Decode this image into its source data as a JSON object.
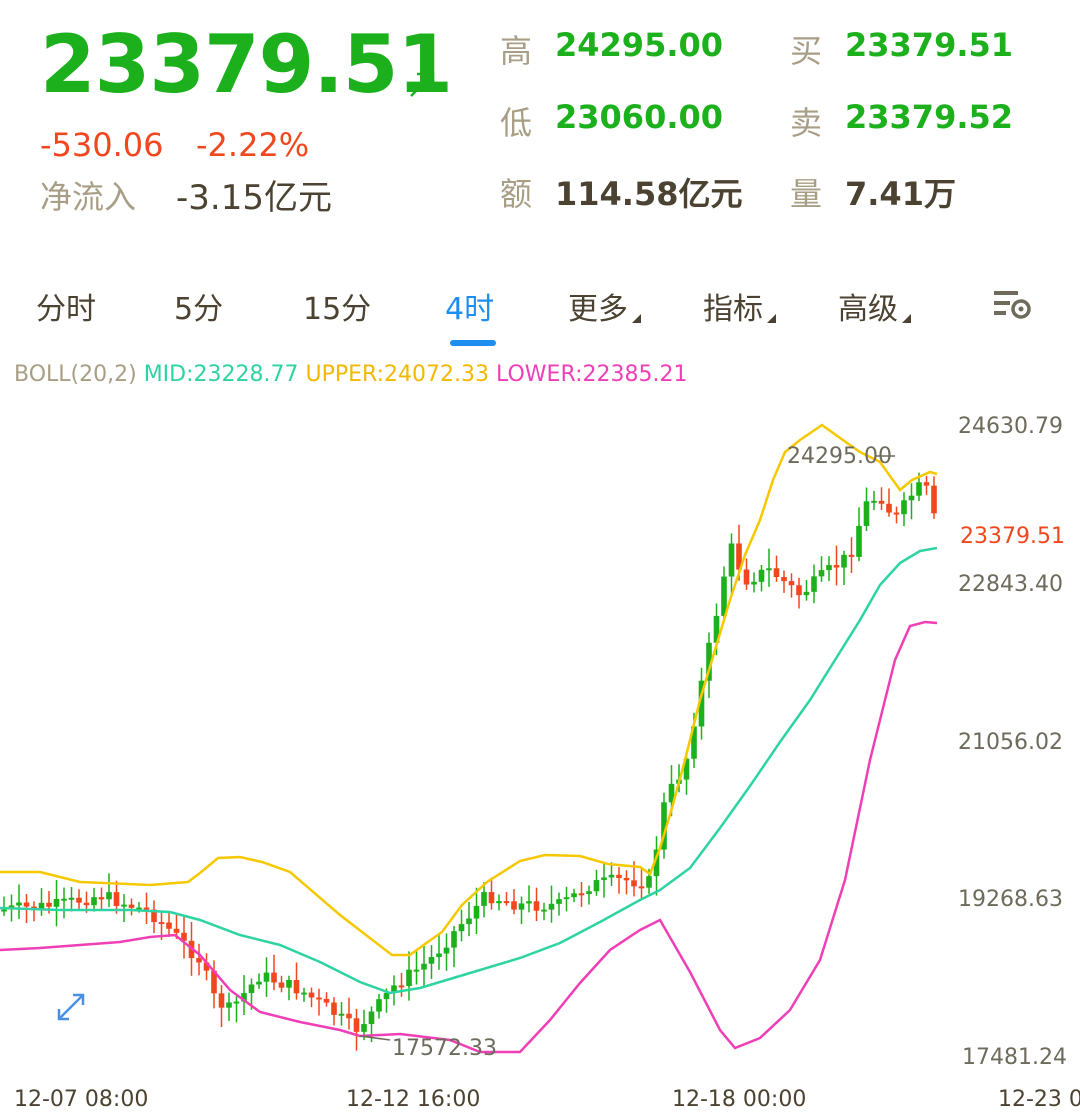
{
  "quote": {
    "price": "23379.51",
    "change": "-530.06",
    "change_pct": "-2.22%",
    "net_inflow_label": "净流入",
    "net_inflow_value": "-3.15亿元",
    "high_label": "高",
    "high_value": "24295.00",
    "low_label": "低",
    "low_value": "23060.00",
    "amount_label": "额",
    "amount_value": "114.58亿元",
    "buy_label": "买",
    "buy_value": "23379.51",
    "sell_label": "卖",
    "sell_value": "23379.52",
    "volume_label": "量",
    "volume_value": "7.41万",
    "up_color": "#1cb01c",
    "down_color": "#f0471e"
  },
  "tabs": [
    {
      "label": "分时",
      "active": false,
      "dropdown": false
    },
    {
      "label": "5分",
      "active": false,
      "dropdown": false
    },
    {
      "label": "15分",
      "active": false,
      "dropdown": false
    },
    {
      "label": "4时",
      "active": true,
      "dropdown": false
    },
    {
      "label": "更多",
      "active": false,
      "dropdown": true
    },
    {
      "label": "指标",
      "active": false,
      "dropdown": true
    },
    {
      "label": "高级",
      "active": false,
      "dropdown": true
    }
  ],
  "settings_icon": "chart-settings-icon",
  "expand_icon": "expand-arrows-icon",
  "boll": {
    "name": "BOLL(20,2)",
    "mid": "MID:23228.77",
    "upper": "UPPER:24072.33",
    "lower": "LOWER:22385.21",
    "colors": {
      "mid": "#2ed3a3",
      "upper": "#f5c800",
      "lower": "#ef3fb6"
    }
  },
  "y_axis": [
    "24630.79",
    "22843.40",
    "21056.02",
    "19268.63",
    "17481.24"
  ],
  "current_price_label": "23379.51",
  "annotations": {
    "high": "24295.00",
    "low": "17572.33"
  },
  "x_axis": [
    "12-07 08:00",
    "12-12 16:00",
    "12-18 00:00",
    "12-23 0"
  ]
}
